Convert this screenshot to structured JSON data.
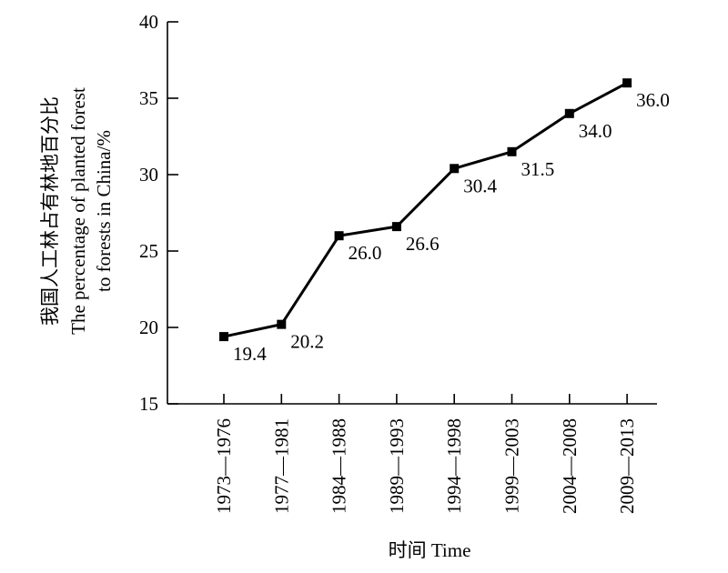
{
  "chart_data": {
    "type": "line",
    "categories": [
      "1973—1976",
      "1977—1981",
      "1984—1988",
      "1989—1993",
      "1994—1998",
      "1999—2003",
      "2004—2008",
      "2009—2013"
    ],
    "series": [
      {
        "values": [
          19.4,
          20.2,
          26.0,
          26.6,
          30.4,
          31.5,
          34.0,
          36.0
        ]
      }
    ],
    "data_labels": [
      "19.4",
      "20.2",
      "26.0",
      "26.6",
      "30.4",
      "31.5",
      "34.0",
      "36.0"
    ],
    "y_ticks": [
      "15",
      "20",
      "25",
      "30",
      "35",
      "40"
    ],
    "ylim": [
      15,
      40
    ],
    "xlabel": "时间 Time",
    "ylabel_lines": [
      "我国人工林占有林地百分比",
      "The percentage of planted forest",
      "to forests in China/%"
    ],
    "grid": false,
    "legend": "none",
    "line_color": "#000000"
  }
}
